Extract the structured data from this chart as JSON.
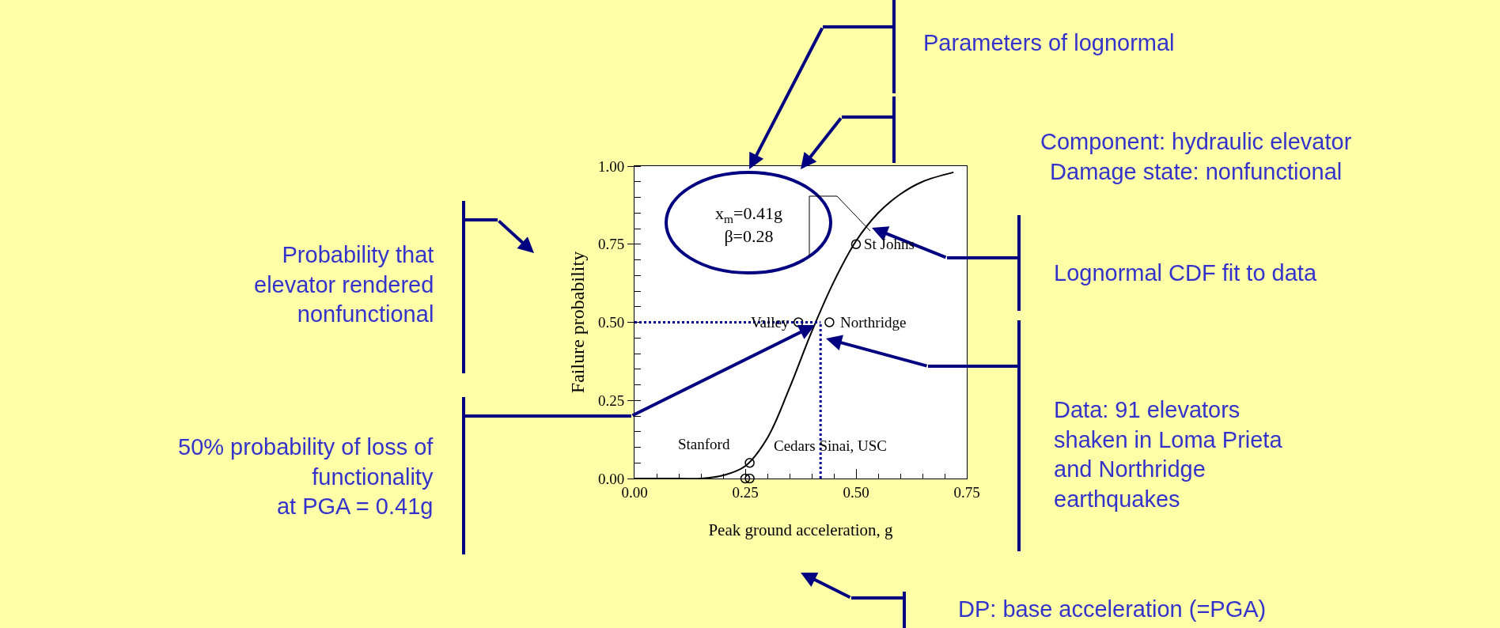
{
  "chart_data": {
    "type": "line",
    "xlabel": "Peak ground acceleration, g",
    "ylabel": "Failure probability",
    "xlim": [
      0,
      0.75
    ],
    "ylim": [
      0,
      1
    ],
    "xticks": [
      {
        "value": 0,
        "label": "0.00"
      },
      {
        "value": 0.25,
        "label": "0.25"
      },
      {
        "value": 0.5,
        "label": "0.50"
      },
      {
        "value": 0.75,
        "label": "0.75"
      }
    ],
    "yticks": [
      {
        "value": 0,
        "label": "0.00"
      },
      {
        "value": 0.25,
        "label": "0.25"
      },
      {
        "value": 0.5,
        "label": "0.50"
      },
      {
        "value": 0.75,
        "label": "0.75"
      },
      {
        "value": 1,
        "label": "1.00"
      }
    ],
    "series": [
      {
        "color": "#000000",
        "marker": "none",
        "x": [
          0,
          0.1,
          0.15,
          0.2,
          0.25,
          0.3,
          0.35,
          0.4,
          0.45,
          0.5,
          0.55,
          0.6,
          0.65,
          0.72
        ],
        "values": [
          0,
          0,
          0,
          0.01,
          0.04,
          0.13,
          0.29,
          0.47,
          0.63,
          0.76,
          0.85,
          0.91,
          0.95,
          0.98
        ]
      },
      {
        "type": "scatter",
        "color": "#000000",
        "marker": "circle",
        "x": [
          0.25,
          0.26,
          0.26,
          0.37,
          0.44,
          0.5
        ],
        "values": [
          0,
          0,
          0.05,
          0.5,
          0.5,
          0.75
        ]
      }
    ],
    "ref_lines": [
      {
        "axis": "y",
        "value": 0.5,
        "color": "#000099",
        "line_style": "dotted"
      },
      {
        "axis": "x",
        "value": 0.42,
        "color": "#000099",
        "line_style": "dotted"
      }
    ],
    "annotations": [
      "x$_{m}$=0.41g\nβ=0.28",
      "Parameters of lognormal",
      "Component: hydraulic elevator\nDamage state: nonfunctional",
      "Lognormal CDF fit to data",
      "Data: 91 elevators\nshaken in Loma Prieta\nand Northridge\nearthquakes",
      "DP: base acceleration (=PGA)",
      "Probability that\nelevator rendered\nnonfunctional",
      "50% probability of loss of\nfunctionality\nat PGA = 0.41g",
      {
        "text": "Stanford",
        "x": 0.25,
        "y": 0
      },
      {
        "text": "Cedars Sinai, USC",
        "x": 0.26,
        "y": 0.05
      },
      {
        "text": "Valley",
        "x": 0.37,
        "y": 0.5
      },
      {
        "text": "Northridge",
        "x": 0.44,
        "y": 0.5
      },
      {
        "text": "St Johns",
        "x": 0.5,
        "y": 0.75
      }
    ]
  }
}
